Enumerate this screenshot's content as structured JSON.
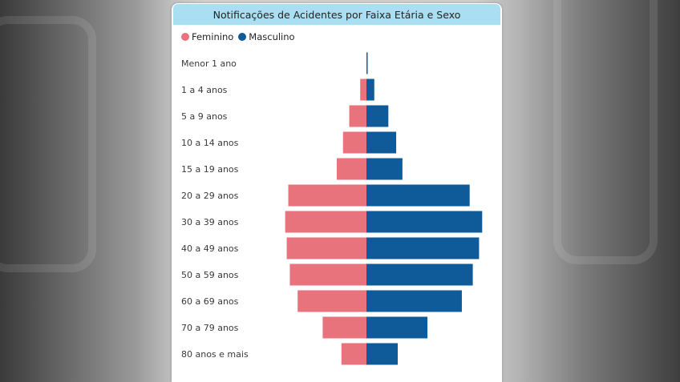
{
  "chart_data": {
    "type": "bar",
    "orientation": "horizontal-population-pyramid",
    "title": "Notificações de Acidentes por Faixa Etária e Sexo",
    "categories": [
      "Menor 1 ano",
      "1 a 4 anos",
      "5 a 9 anos",
      "10 a 14 anos",
      "15 a 19 anos",
      "20 a 29 anos",
      "30 a 39 anos",
      "40 a 49 anos",
      "50 a 59 anos",
      "60 a 69 anos",
      "70 a 79 anos",
      "80 anos e mais"
    ],
    "series": [
      {
        "name": "Feminino",
        "color": "#e8737d",
        "values": [
          0,
          4,
          11,
          15,
          19,
          50,
          52,
          51,
          49,
          44,
          28,
          16
        ]
      },
      {
        "name": "Masculino",
        "color": "#0f5a99",
        "values": [
          0.5,
          5,
          14,
          19,
          23,
          66,
          74,
          72,
          68,
          61,
          39,
          20
        ]
      }
    ],
    "legend_position": "top-left",
    "grid": false,
    "xaxis_visible": false
  }
}
